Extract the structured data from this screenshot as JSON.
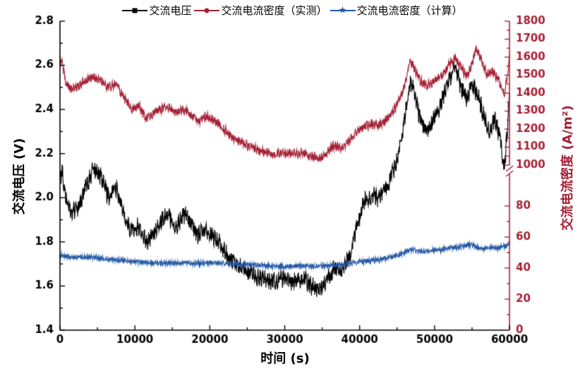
{
  "chart_data": {
    "type": "line",
    "title": "",
    "xlabel": "时间 (s)",
    "ylabel_left": "交流电压 (V)",
    "ylabel_right": "交流电流密度 (A/m²)",
    "legend_position": "top",
    "grid": false,
    "x_range": [
      0,
      60000
    ],
    "x_ticks": [
      0,
      10000,
      20000,
      30000,
      40000,
      50000,
      60000
    ],
    "left_axis": {
      "range": [
        1.4,
        2.8
      ],
      "ticks": [
        1.4,
        1.6,
        1.8,
        2.0,
        2.2,
        2.4,
        2.6,
        2.8
      ],
      "tick_decimals": 1,
      "color": "#000000"
    },
    "right_axis": {
      "broken": true,
      "color": "#A52136",
      "lower": {
        "range": [
          0,
          100
        ],
        "ticks": [
          0,
          20,
          40,
          60,
          80
        ]
      },
      "upper": {
        "range": [
          1000,
          1800
        ],
        "ticks": [
          1000,
          1100,
          1200,
          1300,
          1400,
          1500,
          1600,
          1700,
          1800
        ]
      }
    },
    "series": [
      {
        "name": "交流电压",
        "axis": "left",
        "color": "#000000",
        "marker": "square",
        "noise": 0.035,
        "points": [
          [
            0,
            2.08
          ],
          [
            300,
            2.12
          ],
          [
            800,
            2.0
          ],
          [
            1500,
            1.93
          ],
          [
            2500,
            1.95
          ],
          [
            3500,
            2.05
          ],
          [
            4500,
            2.13
          ],
          [
            5500,
            2.1
          ],
          [
            6500,
            2.0
          ],
          [
            7500,
            2.05
          ],
          [
            8500,
            1.92
          ],
          [
            9500,
            1.85
          ],
          [
            10500,
            1.87
          ],
          [
            11500,
            1.8
          ],
          [
            12500,
            1.84
          ],
          [
            13500,
            1.9
          ],
          [
            14500,
            1.92
          ],
          [
            15500,
            1.87
          ],
          [
            16500,
            1.93
          ],
          [
            17500,
            1.88
          ],
          [
            18500,
            1.83
          ],
          [
            19500,
            1.85
          ],
          [
            20500,
            1.83
          ],
          [
            21500,
            1.79
          ],
          [
            22500,
            1.73
          ],
          [
            23500,
            1.7
          ],
          [
            25000,
            1.67
          ],
          [
            26500,
            1.64
          ],
          [
            28000,
            1.62
          ],
          [
            29500,
            1.63
          ],
          [
            31000,
            1.62
          ],
          [
            32500,
            1.64
          ],
          [
            33500,
            1.6
          ],
          [
            34500,
            1.58
          ],
          [
            35500,
            1.61
          ],
          [
            36500,
            1.68
          ],
          [
            37500,
            1.66
          ],
          [
            38500,
            1.72
          ],
          [
            39500,
            1.85
          ],
          [
            40500,
            1.98
          ],
          [
            41500,
            2.01
          ],
          [
            42500,
            2.0
          ],
          [
            43500,
            2.04
          ],
          [
            44500,
            2.12
          ],
          [
            45500,
            2.25
          ],
          [
            46200,
            2.4
          ],
          [
            46800,
            2.52
          ],
          [
            47300,
            2.48
          ],
          [
            48000,
            2.36
          ],
          [
            49000,
            2.3
          ],
          [
            50000,
            2.36
          ],
          [
            51000,
            2.44
          ],
          [
            52000,
            2.54
          ],
          [
            52800,
            2.59
          ],
          [
            53500,
            2.5
          ],
          [
            54300,
            2.45
          ],
          [
            55000,
            2.52
          ],
          [
            55700,
            2.47
          ],
          [
            56500,
            2.38
          ],
          [
            57300,
            2.3
          ],
          [
            58000,
            2.36
          ],
          [
            58700,
            2.28
          ],
          [
            59300,
            2.12
          ],
          [
            59700,
            2.3
          ],
          [
            60000,
            2.5
          ]
        ]
      },
      {
        "name": "交流电流密度（实测）",
        "axis": "right-upper",
        "color": "#A52136",
        "marker": "circle",
        "noise": 22,
        "points": [
          [
            0,
            1590
          ],
          [
            300,
            1560
          ],
          [
            800,
            1460
          ],
          [
            1500,
            1420
          ],
          [
            2500,
            1440
          ],
          [
            3500,
            1470
          ],
          [
            4500,
            1490
          ],
          [
            5500,
            1470
          ],
          [
            6500,
            1430
          ],
          [
            7500,
            1450
          ],
          [
            8500,
            1380
          ],
          [
            9500,
            1310
          ],
          [
            10500,
            1330
          ],
          [
            11500,
            1260
          ],
          [
            12500,
            1290
          ],
          [
            13500,
            1310
          ],
          [
            14500,
            1320
          ],
          [
            15500,
            1290
          ],
          [
            16500,
            1310
          ],
          [
            17500,
            1280
          ],
          [
            18500,
            1250
          ],
          [
            19500,
            1270
          ],
          [
            20500,
            1250
          ],
          [
            21500,
            1220
          ],
          [
            22500,
            1170
          ],
          [
            23500,
            1140
          ],
          [
            25000,
            1110
          ],
          [
            26500,
            1080
          ],
          [
            28000,
            1060
          ],
          [
            29500,
            1070
          ],
          [
            31000,
            1060
          ],
          [
            32500,
            1070
          ],
          [
            33500,
            1050
          ],
          [
            34500,
            1040
          ],
          [
            35500,
            1060
          ],
          [
            36500,
            1110
          ],
          [
            37500,
            1090
          ],
          [
            38500,
            1130
          ],
          [
            39500,
            1180
          ],
          [
            40500,
            1210
          ],
          [
            41500,
            1230
          ],
          [
            42500,
            1220
          ],
          [
            43500,
            1250
          ],
          [
            44500,
            1300
          ],
          [
            45500,
            1380
          ],
          [
            46200,
            1480
          ],
          [
            46800,
            1580
          ],
          [
            47300,
            1540
          ],
          [
            48000,
            1470
          ],
          [
            49000,
            1440
          ],
          [
            50000,
            1470
          ],
          [
            51000,
            1500
          ],
          [
            52000,
            1560
          ],
          [
            52800,
            1600
          ],
          [
            53500,
            1540
          ],
          [
            54300,
            1500
          ],
          [
            55000,
            1560
          ],
          [
            55500,
            1650
          ],
          [
            56200,
            1590
          ],
          [
            57000,
            1500
          ],
          [
            57800,
            1520
          ],
          [
            58700,
            1460
          ],
          [
            59300,
            1400
          ],
          [
            59700,
            1480
          ],
          [
            60000,
            1600
          ]
        ]
      },
      {
        "name": "交流电流密度（计算）",
        "axis": "right-lower",
        "color": "#2458A6",
        "marker": "star",
        "noise": 1.3,
        "points": [
          [
            0,
            48
          ],
          [
            2000,
            47
          ],
          [
            4000,
            47
          ],
          [
            6000,
            46
          ],
          [
            8000,
            45
          ],
          [
            10000,
            44
          ],
          [
            12000,
            43.5
          ],
          [
            14000,
            43
          ],
          [
            16000,
            43.5
          ],
          [
            18000,
            43
          ],
          [
            20000,
            43.5
          ],
          [
            22000,
            43
          ],
          [
            24000,
            42.5
          ],
          [
            26000,
            42
          ],
          [
            28000,
            41.5
          ],
          [
            30000,
            41
          ],
          [
            32000,
            41.5
          ],
          [
            34000,
            41
          ],
          [
            36000,
            41.5
          ],
          [
            38000,
            42.5
          ],
          [
            40000,
            44
          ],
          [
            42000,
            45
          ],
          [
            44000,
            47
          ],
          [
            45500,
            49
          ],
          [
            47000,
            52
          ],
          [
            48000,
            50.5
          ],
          [
            49000,
            51
          ],
          [
            50000,
            51.5
          ],
          [
            51000,
            52
          ],
          [
            52000,
            53
          ],
          [
            53000,
            53.5
          ],
          [
            54000,
            54.5
          ],
          [
            55000,
            55
          ],
          [
            55800,
            53
          ],
          [
            56500,
            52.5
          ],
          [
            57500,
            53.5
          ],
          [
            58500,
            53
          ],
          [
            59300,
            54
          ],
          [
            60000,
            56
          ]
        ]
      }
    ]
  }
}
